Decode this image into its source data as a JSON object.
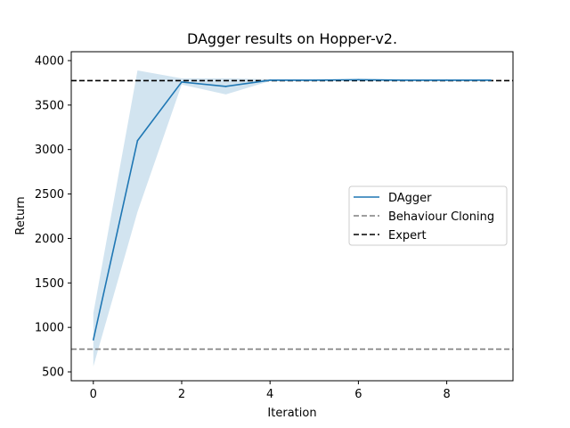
{
  "chart_data": {
    "type": "line",
    "title": "DAgger results on Hopper-v2.",
    "xlabel": "Iteration",
    "ylabel": "Return",
    "xlim": [
      -0.5,
      9.5
    ],
    "ylim": [
      400,
      4100
    ],
    "xticks": [
      0,
      2,
      4,
      6,
      8
    ],
    "yticks": [
      500,
      1000,
      1500,
      2000,
      2500,
      3000,
      3500,
      4000
    ],
    "grid": false,
    "legend_position": "center-right",
    "series": [
      {
        "name": "DAgger",
        "color": "#1f77b4",
        "x": [
          0,
          1,
          2,
          3,
          4,
          5,
          6,
          7,
          8,
          9
        ],
        "values": [
          860,
          3100,
          3760,
          3710,
          3780,
          3780,
          3785,
          3780,
          3780,
          3780
        ],
        "band_lower": [
          560,
          2300,
          3730,
          3620,
          3770,
          3772,
          3775,
          3772,
          3772,
          3772
        ],
        "band_upper": [
          1160,
          3890,
          3800,
          3800,
          3790,
          3790,
          3795,
          3790,
          3790,
          3790
        ]
      }
    ],
    "reference_lines": [
      {
        "name": "Behaviour Cloning",
        "value": 755,
        "color": "#7f7f7f",
        "style": "dashed"
      },
      {
        "name": "Expert",
        "value": 3775,
        "color": "#000000",
        "style": "dashed"
      }
    ]
  }
}
